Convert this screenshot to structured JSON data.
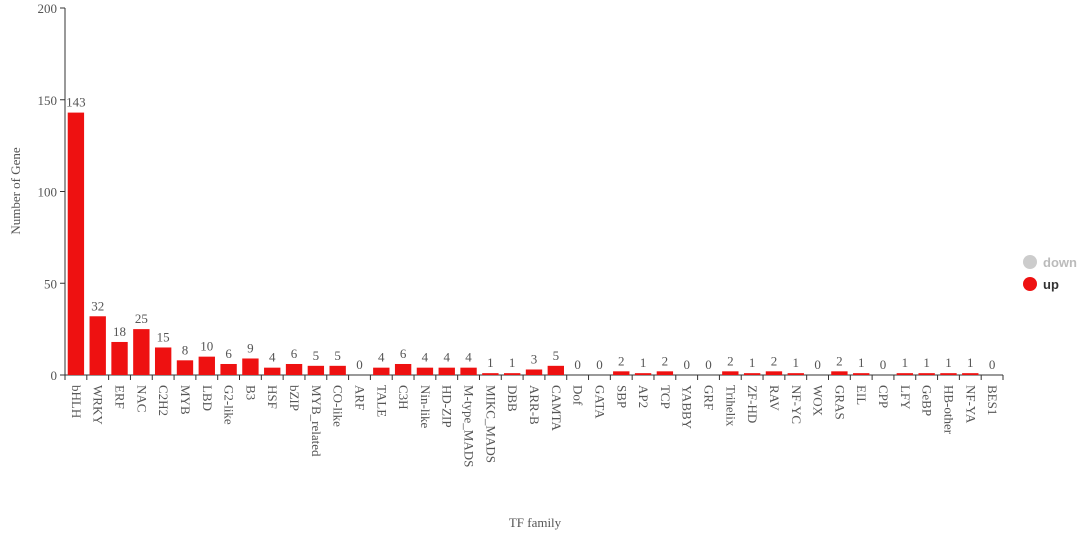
{
  "chart_data": {
    "type": "bar",
    "x_label": "TF family",
    "y_label": "Number of Gene",
    "categories": [
      "bHLH",
      "WRKY",
      "ERF",
      "NAC",
      "C2H2",
      "MYB",
      "LBD",
      "G2-like",
      "B3",
      "HSF",
      "bZIP",
      "MYB_related",
      "CO-like",
      "ARF",
      "TALE",
      "C3H",
      "Nin-like",
      "HD-ZIP",
      "M-type_MADS",
      "MIKC_MADS",
      "DBB",
      "ARR-B",
      "CAMTA",
      "Dof",
      "GATA",
      "SBP",
      "AP2",
      "TCP",
      "YABBY",
      "GRF",
      "Trihelix",
      "ZF-HD",
      "RAV",
      "NF-YC",
      "WOX",
      "GRAS",
      "EIL",
      "CPP",
      "LFY",
      "GeBP",
      "HB-other",
      "NF-YA",
      "BES1"
    ],
    "series": [
      {
        "name": "down",
        "color": "#cccccc",
        "values": [
          null,
          null,
          null,
          null,
          null,
          null,
          null,
          null,
          null,
          null,
          null,
          null,
          null,
          null,
          null,
          null,
          null,
          null,
          null,
          null,
          null,
          null,
          null,
          null,
          null,
          null,
          null,
          null,
          null,
          null,
          null,
          null,
          null,
          null,
          null,
          null,
          null,
          null,
          null,
          null,
          null,
          null,
          null
        ]
      },
      {
        "name": "up",
        "color": "#ee1111",
        "values": [
          143,
          32,
          18,
          25,
          15,
          8,
          10,
          6,
          9,
          4,
          6,
          5,
          5,
          0,
          4,
          6,
          4,
          4,
          4,
          1,
          1,
          3,
          5,
          0,
          0,
          2,
          1,
          2,
          0,
          0,
          2,
          1,
          2,
          1,
          0,
          2,
          1,
          0,
          1,
          1,
          1,
          1,
          0
        ]
      }
    ],
    "ylim": [
      0,
      200
    ],
    "yticks": [
      0,
      50,
      100,
      150,
      200
    ],
    "legend": "right"
  }
}
